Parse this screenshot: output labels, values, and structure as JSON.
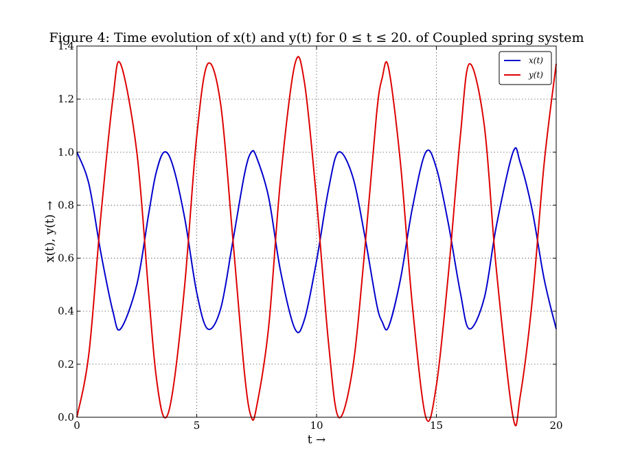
{
  "chart_data": {
    "type": "line",
    "title": "Figure 4: Time evolution of x(t) and y(t) for 0 ≤ t ≤ 20. of Coupled spring system",
    "xlabel": "t →",
    "ylabel": "x(t), y(t) →",
    "xlim": [
      0,
      20
    ],
    "ylim": [
      0,
      1.4
    ],
    "x_ticks": [
      "0",
      "5",
      "10",
      "15",
      "20"
    ],
    "y_ticks": [
      "0.0",
      "0.2",
      "0.4",
      "0.6",
      "0.8",
      "1.0",
      "1.2",
      "1.4"
    ],
    "grid": true,
    "legend_position": "top-right",
    "series": [
      {
        "name": "x(t)",
        "color": "#0000cc",
        "x": [
          0,
          0.5,
          1,
          1.5,
          1.82,
          2.5,
          3,
          3.3,
          3.64,
          4,
          4.5,
          5,
          5.46,
          6,
          6.5,
          7,
          7.28,
          7.5,
          8,
          8.5,
          9.1,
          9.5,
          10,
          10.5,
          10.92,
          11.5,
          12,
          12.5,
          12.74,
          13,
          13.5,
          14,
          14.56,
          15,
          15.5,
          16,
          16.38,
          17,
          17.5,
          18.2,
          18.5,
          19,
          19.5,
          20
        ],
        "values": [
          1.0,
          0.88,
          0.62,
          0.4,
          0.333,
          0.5,
          0.77,
          0.92,
          1.0,
          0.95,
          0.75,
          0.47,
          0.333,
          0.41,
          0.66,
          0.92,
          1.0,
          0.98,
          0.83,
          0.55,
          0.333,
          0.37,
          0.59,
          0.86,
          1.0,
          0.91,
          0.69,
          0.43,
          0.36,
          0.34,
          0.52,
          0.79,
          1.0,
          0.94,
          0.73,
          0.47,
          0.333,
          0.45,
          0.72,
          1.0,
          0.96,
          0.78,
          0.52,
          0.333
        ]
      },
      {
        "name": "y(t)",
        "color": "#dd0000",
        "x": [
          0,
          0.5,
          1,
          1.5,
          1.82,
          2.5,
          3,
          3.3,
          3.64,
          4,
          4.5,
          5,
          5.46,
          6,
          6.5,
          7,
          7.28,
          7.5,
          8,
          8.5,
          9.1,
          9.5,
          10,
          10.5,
          10.92,
          11.5,
          12,
          12.5,
          12.74,
          13,
          13.5,
          14,
          14.56,
          15,
          15.5,
          16,
          16.38,
          17,
          17.5,
          18.2,
          18.5,
          19,
          19.5,
          20
        ],
        "values": [
          0.0,
          0.24,
          0.76,
          1.2,
          1.333,
          1.0,
          0.46,
          0.16,
          0.0,
          0.1,
          0.5,
          1.06,
          1.333,
          1.18,
          0.68,
          0.16,
          0.0,
          0.04,
          0.34,
          0.9,
          1.333,
          1.26,
          0.82,
          0.28,
          0.0,
          0.18,
          0.62,
          1.14,
          1.28,
          1.32,
          0.96,
          0.42,
          0.0,
          0.12,
          0.54,
          1.06,
          1.333,
          1.1,
          0.56,
          0.0,
          0.08,
          0.44,
          0.96,
          1.333
        ]
      }
    ]
  }
}
